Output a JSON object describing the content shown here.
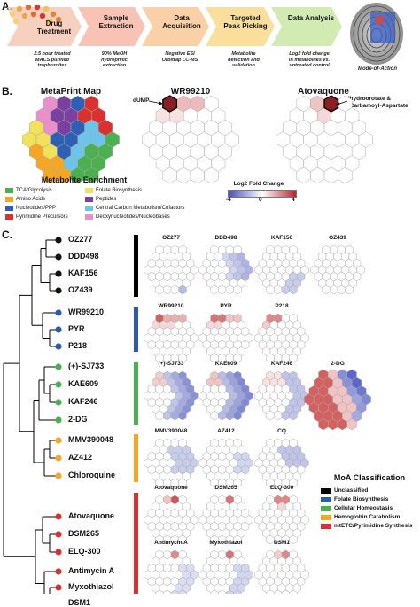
{
  "panelA": {
    "label": "A.",
    "steps": [
      {
        "title": "Drug\nTreatment",
        "sub": "2.5 hour treated\nMACS purified\ntrophozoites",
        "color": "#f6c9b4"
      },
      {
        "title": "Sample\nExtraction",
        "sub": "90% MeOH\nhydrophilic\nextraction",
        "color": "#f7b7a8"
      },
      {
        "title": "Data\nAcquisition",
        "sub": "Negative ESI\nOrbitrap LC-MS",
        "color": "#f9c896"
      },
      {
        "title": "Targeted\nPeak Picking",
        "sub": "Metabolite\ndetection and\nvalidation",
        "color": "#f8d98a"
      },
      {
        "title": "Data Analysis",
        "sub": "Log2 fold change\nin metabolites vs.\nuntreated control",
        "color": "#c9e7a4"
      }
    ],
    "moa_label": "Mode-of-Action"
  },
  "panelB": {
    "label": "B.",
    "map_title": "MetaPrint Map",
    "wr_title": "WR99210",
    "ato_title": "Atovaquone",
    "dump": "dUMP",
    "ato_annot": "Dihydroorotate &\nN-Carbamoyl-Aspartate",
    "enrich_title": "Metabolite Enrichment",
    "legend": [
      {
        "name": "TCA/Glycolysis",
        "color": "#4caf50"
      },
      {
        "name": "Folate Biosynthesis",
        "color": "#f2e15a"
      },
      {
        "name": "Amino Acids",
        "color": "#f5a623"
      },
      {
        "name": "Peptides",
        "color": "#7b3fa0"
      },
      {
        "name": "Nucleotides/PPP",
        "color": "#2f5fb3"
      },
      {
        "name": "Central Carbon Metabolism/Cofactors",
        "color": "#6ec3e8"
      },
      {
        "name": "Pyrimidine Precursors",
        "color": "#d8312f"
      },
      {
        "name": "Deoxynucleotides/Nucleobases",
        "color": "#e98fc9"
      }
    ],
    "fc_title": "Log2 Fold Change",
    "fc_ticks": [
      "-4",
      "0",
      "4"
    ]
  },
  "panelC": {
    "label": "C.",
    "compounds": [
      {
        "name": "OZ277",
        "color": "#111111"
      },
      {
        "name": "DDD498",
        "color": "#111111"
      },
      {
        "name": "KAF156",
        "color": "#111111"
      },
      {
        "name": "OZ439",
        "color": "#111111"
      },
      {
        "name": "WR99210",
        "color": "#2a5bb0"
      },
      {
        "name": "PYR",
        "color": "#2a5bb0"
      },
      {
        "name": "P218",
        "color": "#2a5bb0"
      },
      {
        "name": "(+)-SJ733",
        "color": "#4caf50"
      },
      {
        "name": "KAE609",
        "color": "#4caf50"
      },
      {
        "name": "KAF246",
        "color": "#4caf50"
      },
      {
        "name": "2-DG",
        "color": "#4caf50"
      },
      {
        "name": "MMV390048",
        "color": "#f5a623"
      },
      {
        "name": "AZ412",
        "color": "#f5a623"
      },
      {
        "name": "Chloroquine",
        "color": "#f5a623"
      },
      {
        "name": "Atovaquone",
        "color": "#d8312f"
      },
      {
        "name": "DSM265",
        "color": "#d8312f"
      },
      {
        "name": "ELQ-300",
        "color": "#d8312f"
      },
      {
        "name": "Antimycin A",
        "color": "#d8312f"
      },
      {
        "name": "Myxothiazol",
        "color": "#d8312f"
      },
      {
        "name": "DSM1",
        "color": "#d8312f"
      }
    ],
    "map_rows": [
      [
        "OZ277",
        "DDD498",
        "KAF156",
        "OZ439"
      ],
      [
        "WR99210",
        "PYR",
        "P218"
      ],
      [
        "(+)-SJ733",
        "KAE609",
        "KAF246",
        "2-DG"
      ],
      [
        "MMV390048",
        "AZ412",
        "CQ"
      ],
      [
        "Atovaquone",
        "DSM265",
        "ELQ-300"
      ],
      [
        "Antimycin A",
        "Myxothiazol",
        "DSM1"
      ]
    ],
    "moa_title": "MoA Classification",
    "moa": [
      {
        "name": "Unclassified",
        "color": "#000000"
      },
      {
        "name": "Folate Biosynthesis",
        "color": "#2a5bb0"
      },
      {
        "name": "Cellular Homeostasis",
        "color": "#4caf50"
      },
      {
        "name": "Hemoglobin Catabolism",
        "color": "#f5a623"
      },
      {
        "name": "mtETC/Pyrimidine Synthesis",
        "color": "#d8312f"
      }
    ]
  }
}
